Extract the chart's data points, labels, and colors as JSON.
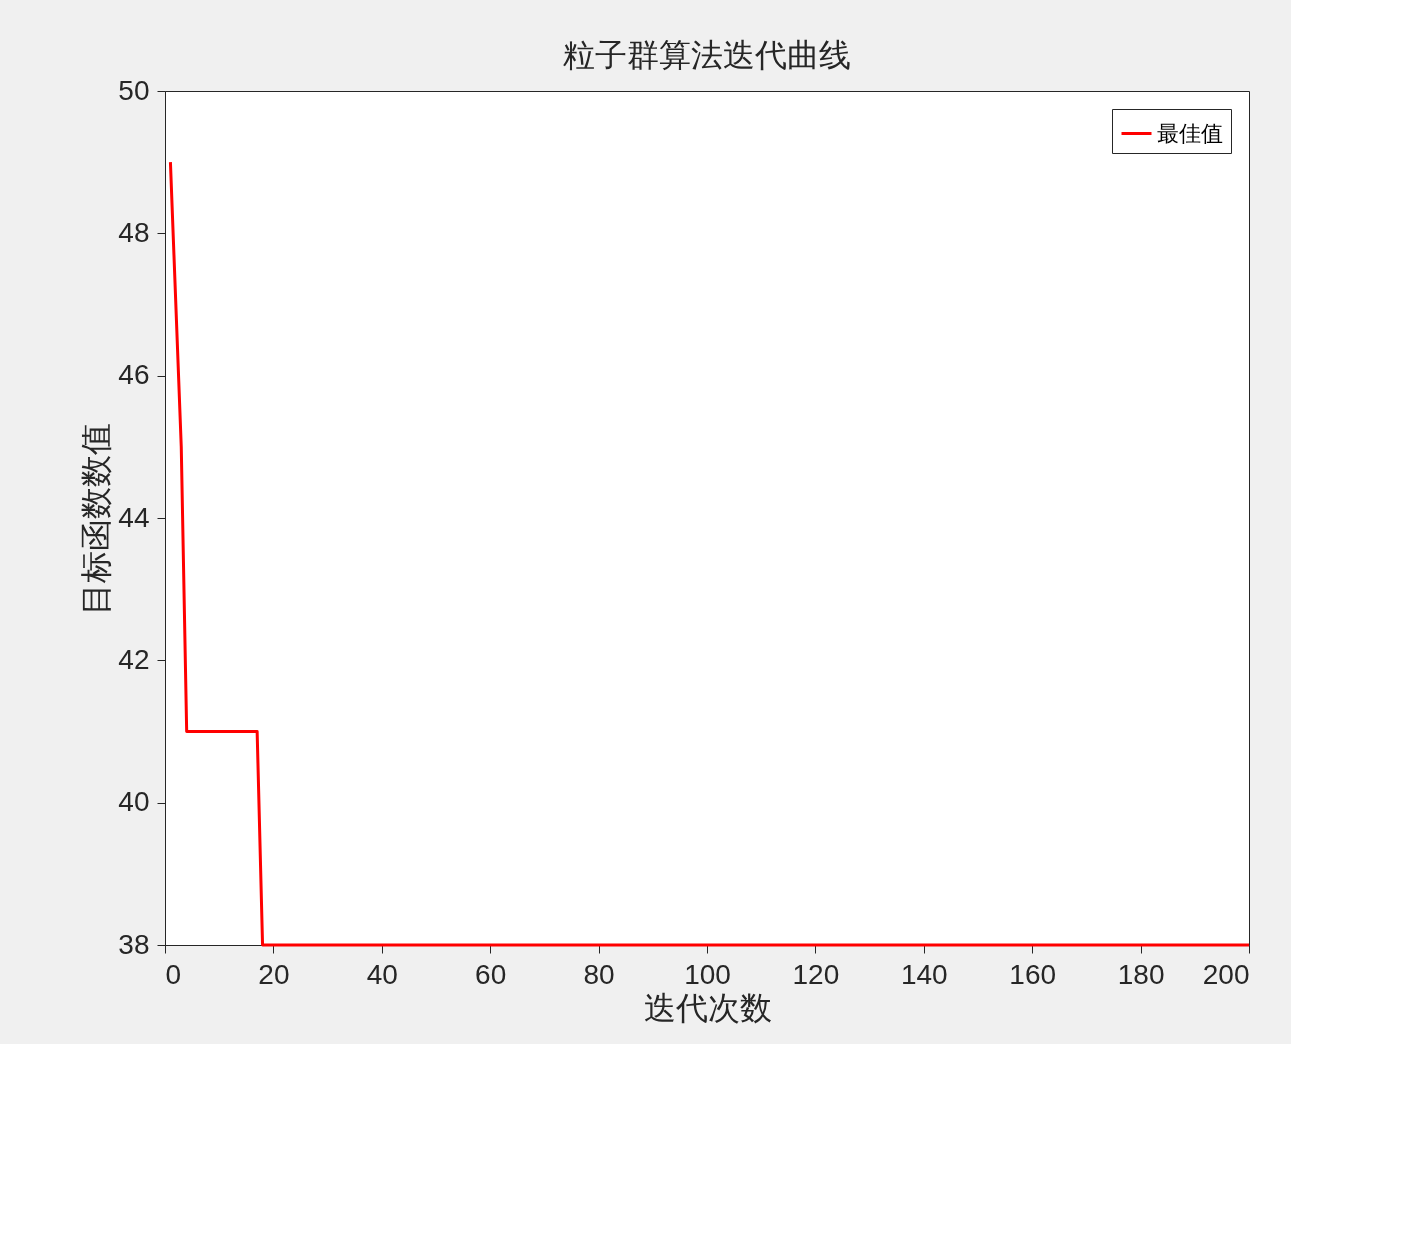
{
  "chart_data": {
    "type": "line",
    "title": "粒子群算法迭代曲线",
    "xlabel": "迭代次数",
    "ylabel": "目标函数数值",
    "xlim": [
      0,
      200
    ],
    "xticks": [
      0,
      20,
      40,
      60,
      80,
      100,
      120,
      140,
      160,
      180,
      200
    ],
    "ylim": [
      38,
      50
    ],
    "yticks": [
      38,
      40,
      42,
      44,
      46,
      48,
      50
    ],
    "series": [
      {
        "name": "最佳值",
        "color": "#ff0000",
        "x": [
          1,
          3,
          4,
          17,
          18,
          200
        ],
        "values": [
          49,
          45,
          41,
          41,
          38,
          38
        ]
      }
    ],
    "legend": "top right",
    "grid": false,
    "marker": "none",
    "line_style": "solid"
  }
}
